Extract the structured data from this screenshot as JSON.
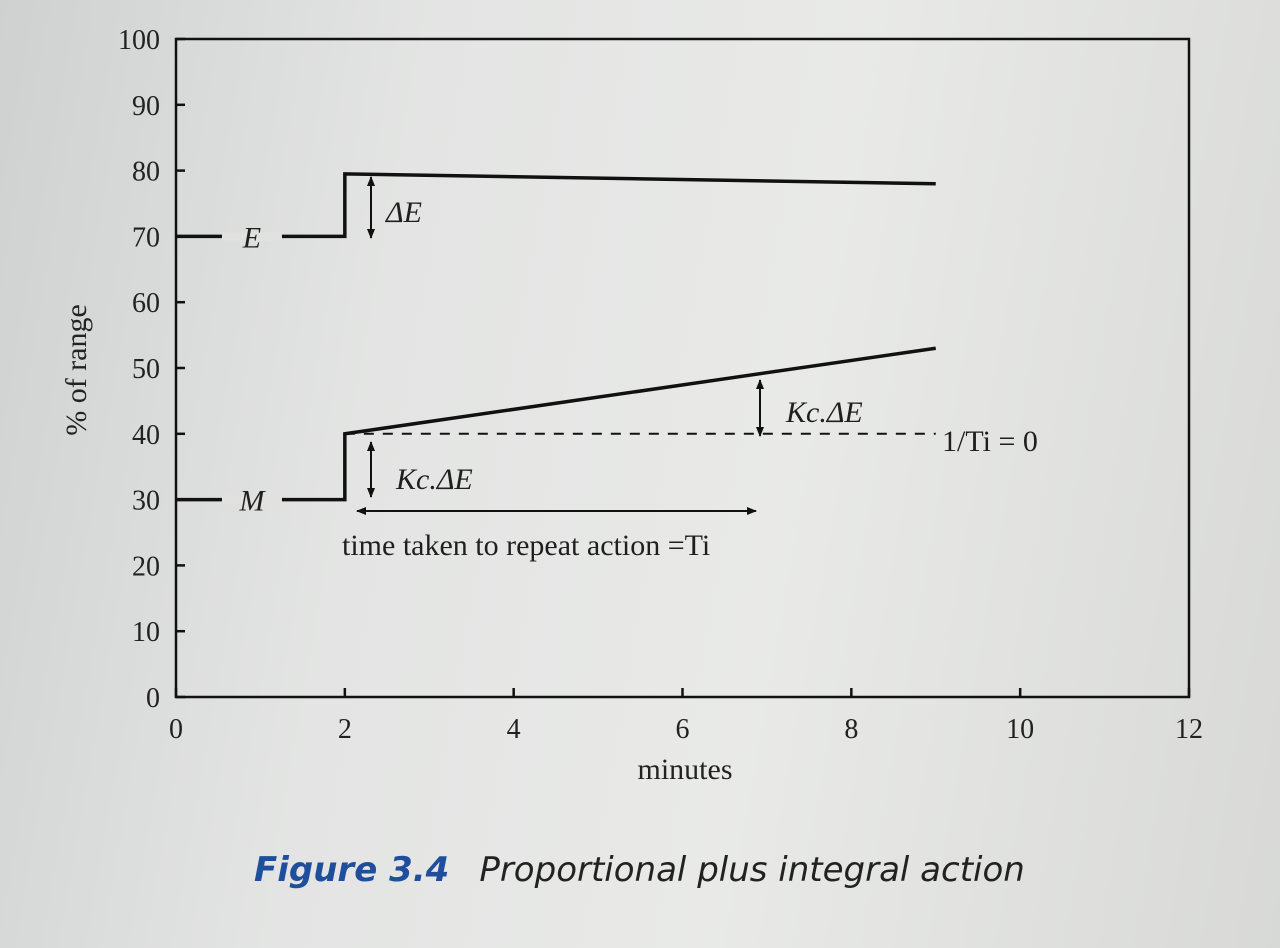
{
  "chart_data": {
    "type": "line",
    "xlabel": "minutes",
    "ylabel": "% of range",
    "xlim": [
      0,
      12
    ],
    "ylim": [
      0,
      100
    ],
    "xticks": [
      0,
      2,
      4,
      6,
      8,
      10,
      12
    ],
    "yticks": [
      0,
      10,
      20,
      30,
      40,
      50,
      60,
      70,
      80,
      90,
      100
    ],
    "grid": false,
    "series": [
      {
        "label": "E",
        "label_x": 0.9,
        "label_y": 70,
        "x": [
          0,
          2,
          2,
          9
        ],
        "y": [
          70,
          70,
          79.5,
          78
        ]
      },
      {
        "label": "M",
        "label_x": 0.9,
        "label_y": 30,
        "x": [
          0,
          2,
          2,
          9
        ],
        "y": [
          30,
          30,
          40,
          53
        ]
      },
      {
        "label": "1/T_i = 0",
        "dashed": true,
        "x": [
          2,
          9
        ],
        "y": [
          40,
          40
        ]
      }
    ],
    "annotations": {
      "delta_e": "ΔE",
      "kc_de_1": "Kc.ΔE",
      "kc_de_2": "Kc.ΔE",
      "inv_ti": "1/Ti = 0",
      "repeat_text": "time taken to repeat action =Ti"
    },
    "caption": {
      "number": "Figure 3.4",
      "text": "Proportional plus integral action"
    }
  }
}
